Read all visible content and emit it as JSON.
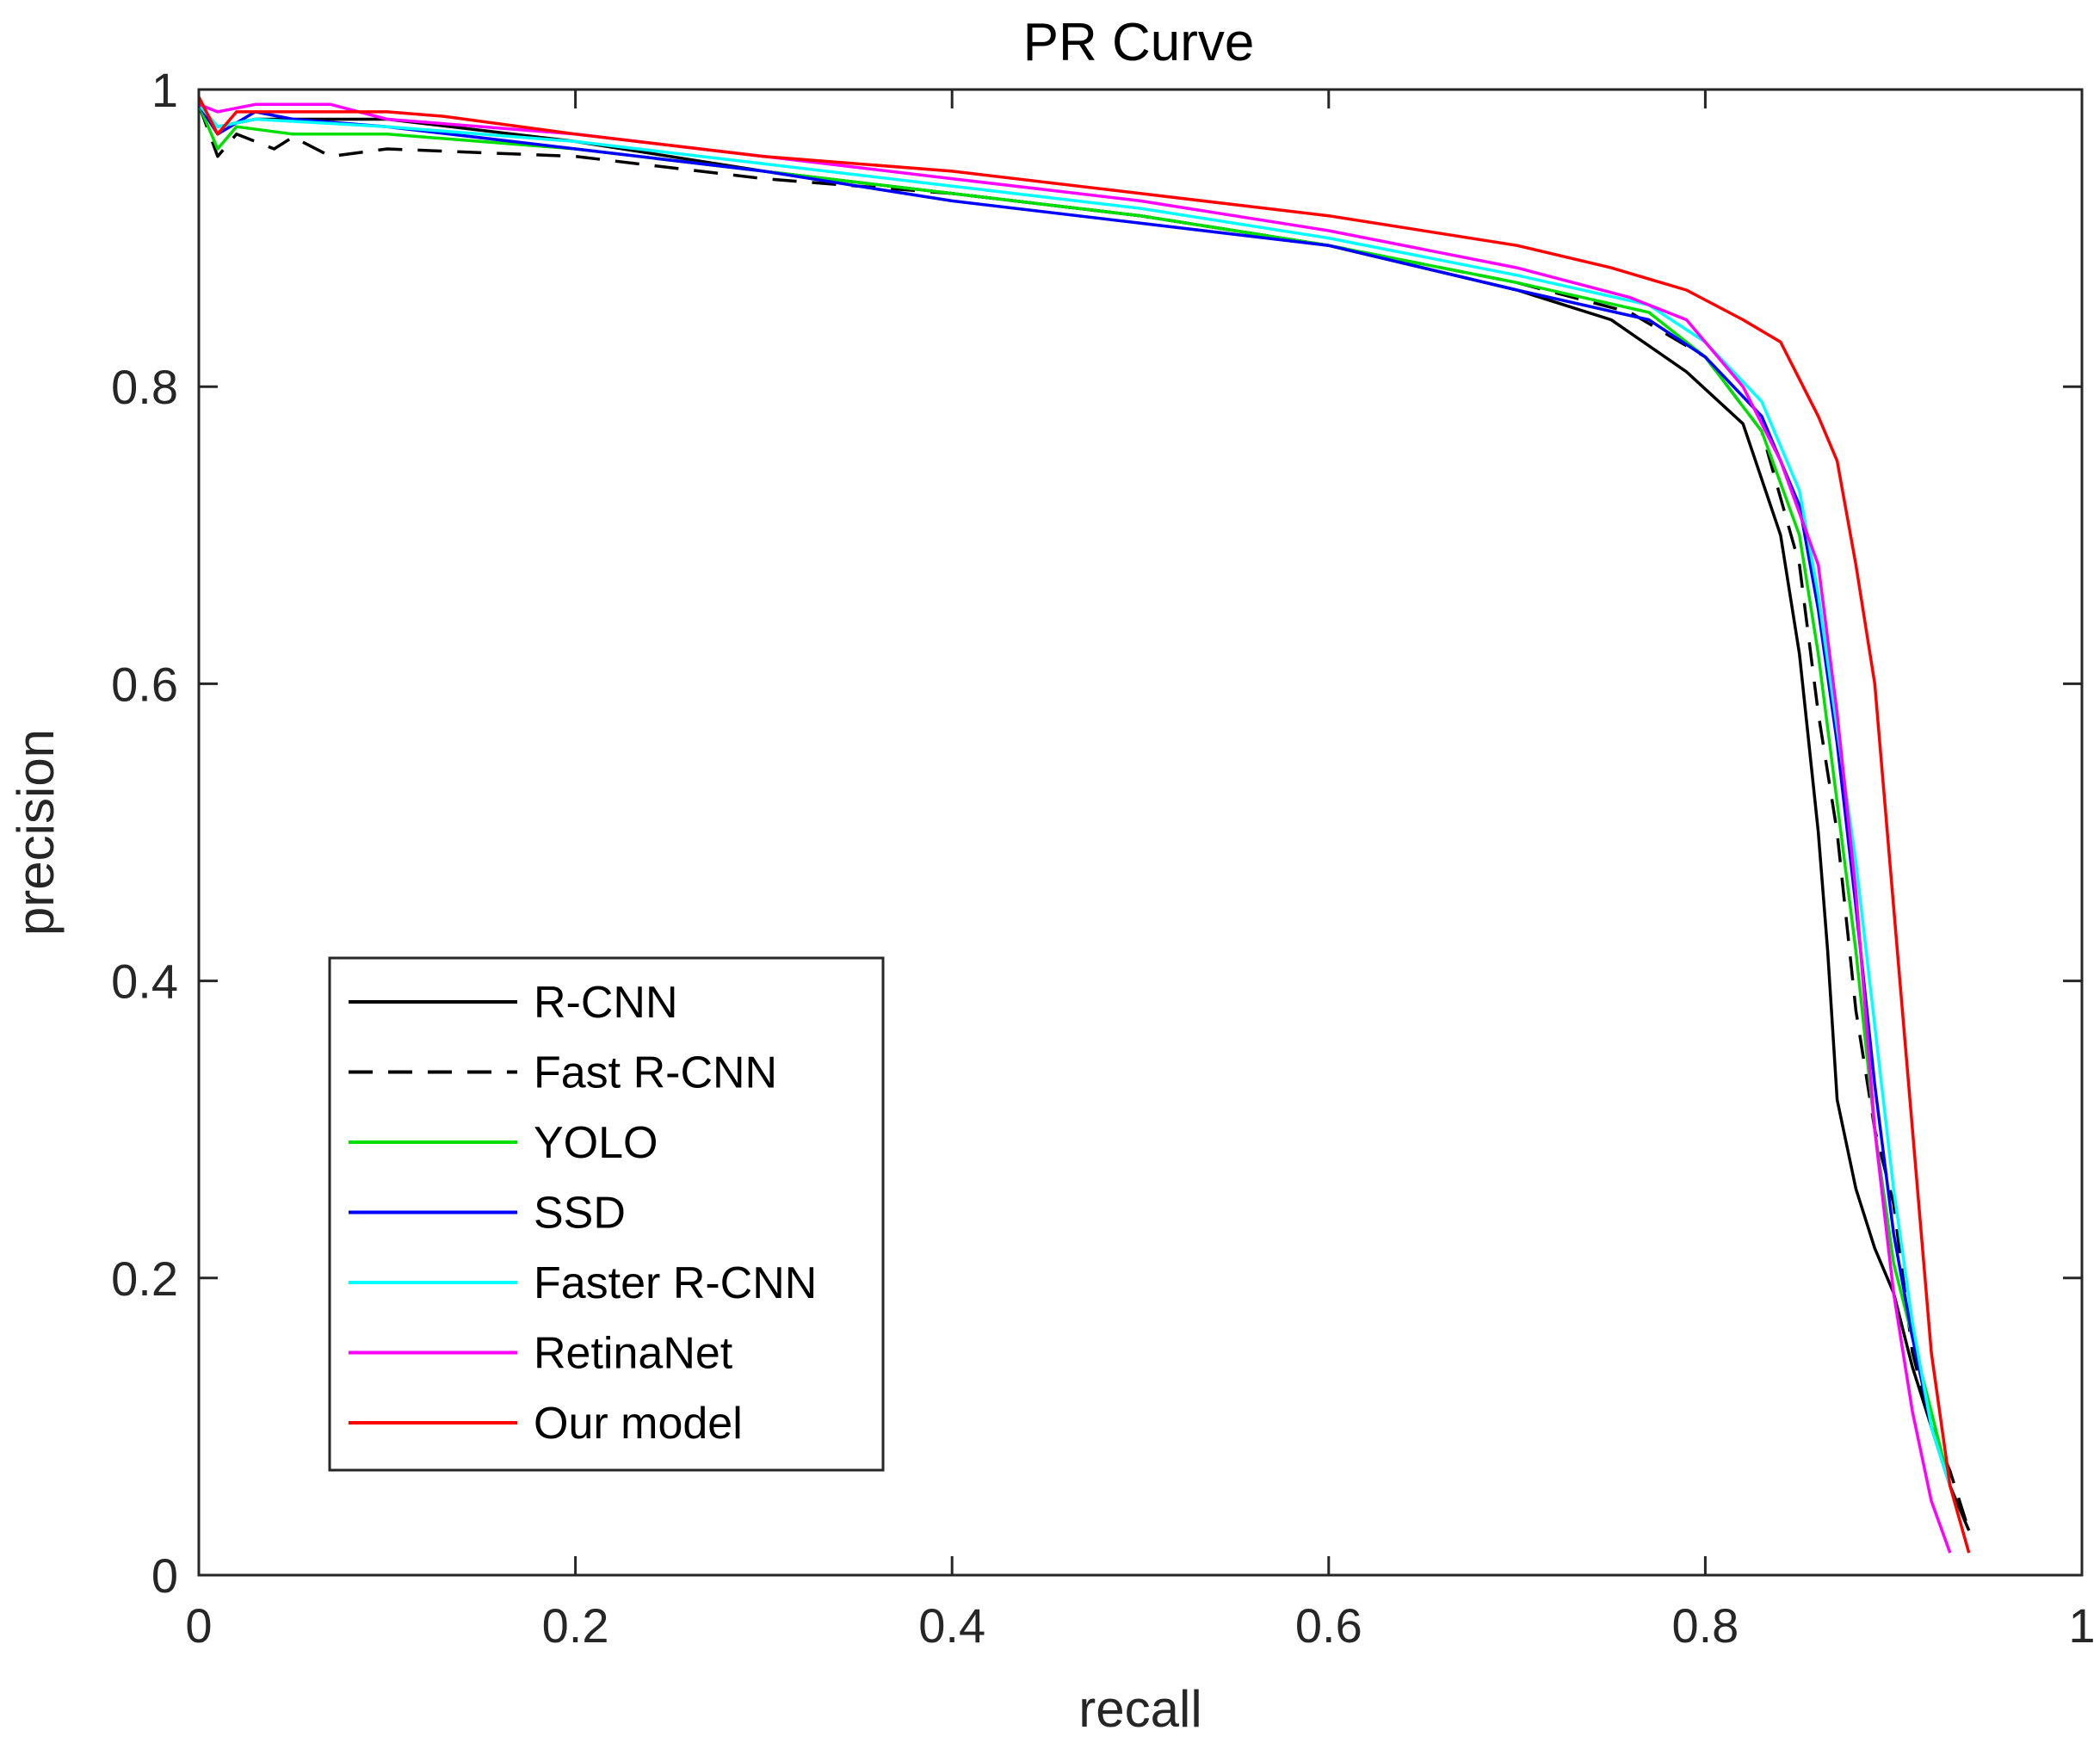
{
  "chart_data": {
    "type": "line",
    "title": "PR Curve",
    "xlabel": "recall",
    "ylabel": "precision",
    "xlim": [
      0,
      1
    ],
    "ylim": [
      0,
      1
    ],
    "xticks": [
      0,
      0.2,
      0.4,
      0.6,
      0.8,
      1
    ],
    "yticks": [
      0,
      0.2,
      0.4,
      0.6,
      0.8,
      1
    ],
    "xtick_labels": [
      "0",
      "0.2",
      "0.4",
      "0.6",
      "0.8",
      "1"
    ],
    "ytick_labels": [
      "0",
      "0.2",
      "0.4",
      "0.6",
      "0.8",
      "1"
    ],
    "grid": false,
    "legend_position": "bottom-left",
    "series": [
      {
        "name": "R-CNN",
        "color": "#000000",
        "dash": "solid",
        "points": [
          [
            0,
            0.99
          ],
          [
            0.01,
            0.975
          ],
          [
            0.03,
            0.98
          ],
          [
            0.1,
            0.98
          ],
          [
            0.2,
            0.965
          ],
          [
            0.3,
            0.945
          ],
          [
            0.4,
            0.93
          ],
          [
            0.5,
            0.915
          ],
          [
            0.6,
            0.895
          ],
          [
            0.7,
            0.865
          ],
          [
            0.75,
            0.845
          ],
          [
            0.79,
            0.81
          ],
          [
            0.82,
            0.775
          ],
          [
            0.84,
            0.7
          ],
          [
            0.85,
            0.62
          ],
          [
            0.86,
            0.5
          ],
          [
            0.865,
            0.42
          ],
          [
            0.87,
            0.32
          ],
          [
            0.88,
            0.26
          ],
          [
            0.89,
            0.22
          ],
          [
            0.9,
            0.19
          ],
          [
            0.91,
            0.14
          ],
          [
            0.92,
            0.1
          ],
          [
            0.93,
            0.06
          ],
          [
            0.94,
            0.03
          ]
        ]
      },
      {
        "name": "Fast R-CNN",
        "color": "#000000",
        "dash": "dashed",
        "points": [
          [
            0,
            0.99
          ],
          [
            0.01,
            0.955
          ],
          [
            0.02,
            0.97
          ],
          [
            0.04,
            0.96
          ],
          [
            0.05,
            0.968
          ],
          [
            0.07,
            0.955
          ],
          [
            0.1,
            0.96
          ],
          [
            0.2,
            0.955
          ],
          [
            0.3,
            0.94
          ],
          [
            0.4,
            0.93
          ],
          [
            0.5,
            0.915
          ],
          [
            0.6,
            0.895
          ],
          [
            0.7,
            0.87
          ],
          [
            0.76,
            0.85
          ],
          [
            0.8,
            0.82
          ],
          [
            0.83,
            0.77
          ],
          [
            0.85,
            0.68
          ],
          [
            0.86,
            0.58
          ],
          [
            0.87,
            0.5
          ],
          [
            0.88,
            0.38
          ],
          [
            0.89,
            0.3
          ],
          [
            0.9,
            0.25
          ],
          [
            0.91,
            0.15
          ],
          [
            0.92,
            0.1
          ],
          [
            0.93,
            0.07
          ],
          [
            0.94,
            0.03
          ]
        ]
      },
      {
        "name": "YOLO",
        "color": "#00e000",
        "dash": "solid",
        "points": [
          [
            0,
            0.99
          ],
          [
            0.01,
            0.96
          ],
          [
            0.02,
            0.975
          ],
          [
            0.05,
            0.97
          ],
          [
            0.1,
            0.97
          ],
          [
            0.2,
            0.96
          ],
          [
            0.3,
            0.945
          ],
          [
            0.4,
            0.93
          ],
          [
            0.5,
            0.915
          ],
          [
            0.6,
            0.895
          ],
          [
            0.7,
            0.87
          ],
          [
            0.77,
            0.85
          ],
          [
            0.8,
            0.82
          ],
          [
            0.83,
            0.77
          ],
          [
            0.85,
            0.7
          ],
          [
            0.86,
            0.62
          ],
          [
            0.87,
            0.52
          ],
          [
            0.88,
            0.42
          ],
          [
            0.89,
            0.3
          ],
          [
            0.9,
            0.21
          ],
          [
            0.91,
            0.16
          ],
          [
            0.92,
            0.11
          ],
          [
            0.93,
            0.06
          ]
        ]
      },
      {
        "name": "SSD",
        "color": "#0000ff",
        "dash": "solid",
        "points": [
          [
            0,
            0.99
          ],
          [
            0.01,
            0.97
          ],
          [
            0.03,
            0.985
          ],
          [
            0.05,
            0.98
          ],
          [
            0.1,
            0.975
          ],
          [
            0.2,
            0.96
          ],
          [
            0.3,
            0.945
          ],
          [
            0.4,
            0.925
          ],
          [
            0.5,
            0.91
          ],
          [
            0.6,
            0.895
          ],
          [
            0.7,
            0.865
          ],
          [
            0.77,
            0.845
          ],
          [
            0.8,
            0.82
          ],
          [
            0.83,
            0.78
          ],
          [
            0.85,
            0.72
          ],
          [
            0.86,
            0.65
          ],
          [
            0.87,
            0.56
          ],
          [
            0.88,
            0.45
          ],
          [
            0.89,
            0.33
          ],
          [
            0.9,
            0.23
          ],
          [
            0.91,
            0.16
          ],
          [
            0.92,
            0.1
          ],
          [
            0.93,
            0.06
          ]
        ]
      },
      {
        "name": "Faster R-CNN",
        "color": "#00ffff",
        "dash": "solid",
        "points": [
          [
            0,
            0.99
          ],
          [
            0.01,
            0.975
          ],
          [
            0.03,
            0.98
          ],
          [
            0.1,
            0.975
          ],
          [
            0.2,
            0.965
          ],
          [
            0.3,
            0.95
          ],
          [
            0.4,
            0.935
          ],
          [
            0.5,
            0.92
          ],
          [
            0.6,
            0.9
          ],
          [
            0.7,
            0.875
          ],
          [
            0.77,
            0.855
          ],
          [
            0.8,
            0.83
          ],
          [
            0.83,
            0.79
          ],
          [
            0.85,
            0.73
          ],
          [
            0.86,
            0.66
          ],
          [
            0.87,
            0.57
          ],
          [
            0.88,
            0.48
          ],
          [
            0.89,
            0.37
          ],
          [
            0.9,
            0.26
          ],
          [
            0.91,
            0.17
          ],
          [
            0.92,
            0.1
          ],
          [
            0.93,
            0.06
          ]
        ]
      },
      {
        "name": "RetinaNet",
        "color": "#ff00ff",
        "dash": "solid",
        "points": [
          [
            0,
            0.99
          ],
          [
            0.01,
            0.985
          ],
          [
            0.03,
            0.99
          ],
          [
            0.07,
            0.99
          ],
          [
            0.1,
            0.98
          ],
          [
            0.2,
            0.97
          ],
          [
            0.3,
            0.955
          ],
          [
            0.4,
            0.94
          ],
          [
            0.5,
            0.925
          ],
          [
            0.6,
            0.905
          ],
          [
            0.7,
            0.88
          ],
          [
            0.76,
            0.86
          ],
          [
            0.79,
            0.845
          ],
          [
            0.82,
            0.8
          ],
          [
            0.84,
            0.75
          ],
          [
            0.86,
            0.68
          ],
          [
            0.87,
            0.58
          ],
          [
            0.88,
            0.46
          ],
          [
            0.89,
            0.3
          ],
          [
            0.9,
            0.19
          ],
          [
            0.91,
            0.11
          ],
          [
            0.92,
            0.05
          ],
          [
            0.93,
            0.015
          ]
        ]
      },
      {
        "name": "Our model",
        "color": "#ff0000",
        "dash": "solid",
        "points": [
          [
            0,
            0.995
          ],
          [
            0.01,
            0.97
          ],
          [
            0.02,
            0.985
          ],
          [
            0.1,
            0.985
          ],
          [
            0.13,
            0.982
          ],
          [
            0.2,
            0.97
          ],
          [
            0.3,
            0.955
          ],
          [
            0.4,
            0.945
          ],
          [
            0.5,
            0.93
          ],
          [
            0.6,
            0.915
          ],
          [
            0.7,
            0.895
          ],
          [
            0.75,
            0.88
          ],
          [
            0.79,
            0.865
          ],
          [
            0.82,
            0.845
          ],
          [
            0.84,
            0.83
          ],
          [
            0.86,
            0.78
          ],
          [
            0.87,
            0.75
          ],
          [
            0.88,
            0.68
          ],
          [
            0.89,
            0.6
          ],
          [
            0.9,
            0.45
          ],
          [
            0.91,
            0.3
          ],
          [
            0.92,
            0.15
          ],
          [
            0.93,
            0.06
          ],
          [
            0.94,
            0.015
          ]
        ]
      }
    ]
  }
}
